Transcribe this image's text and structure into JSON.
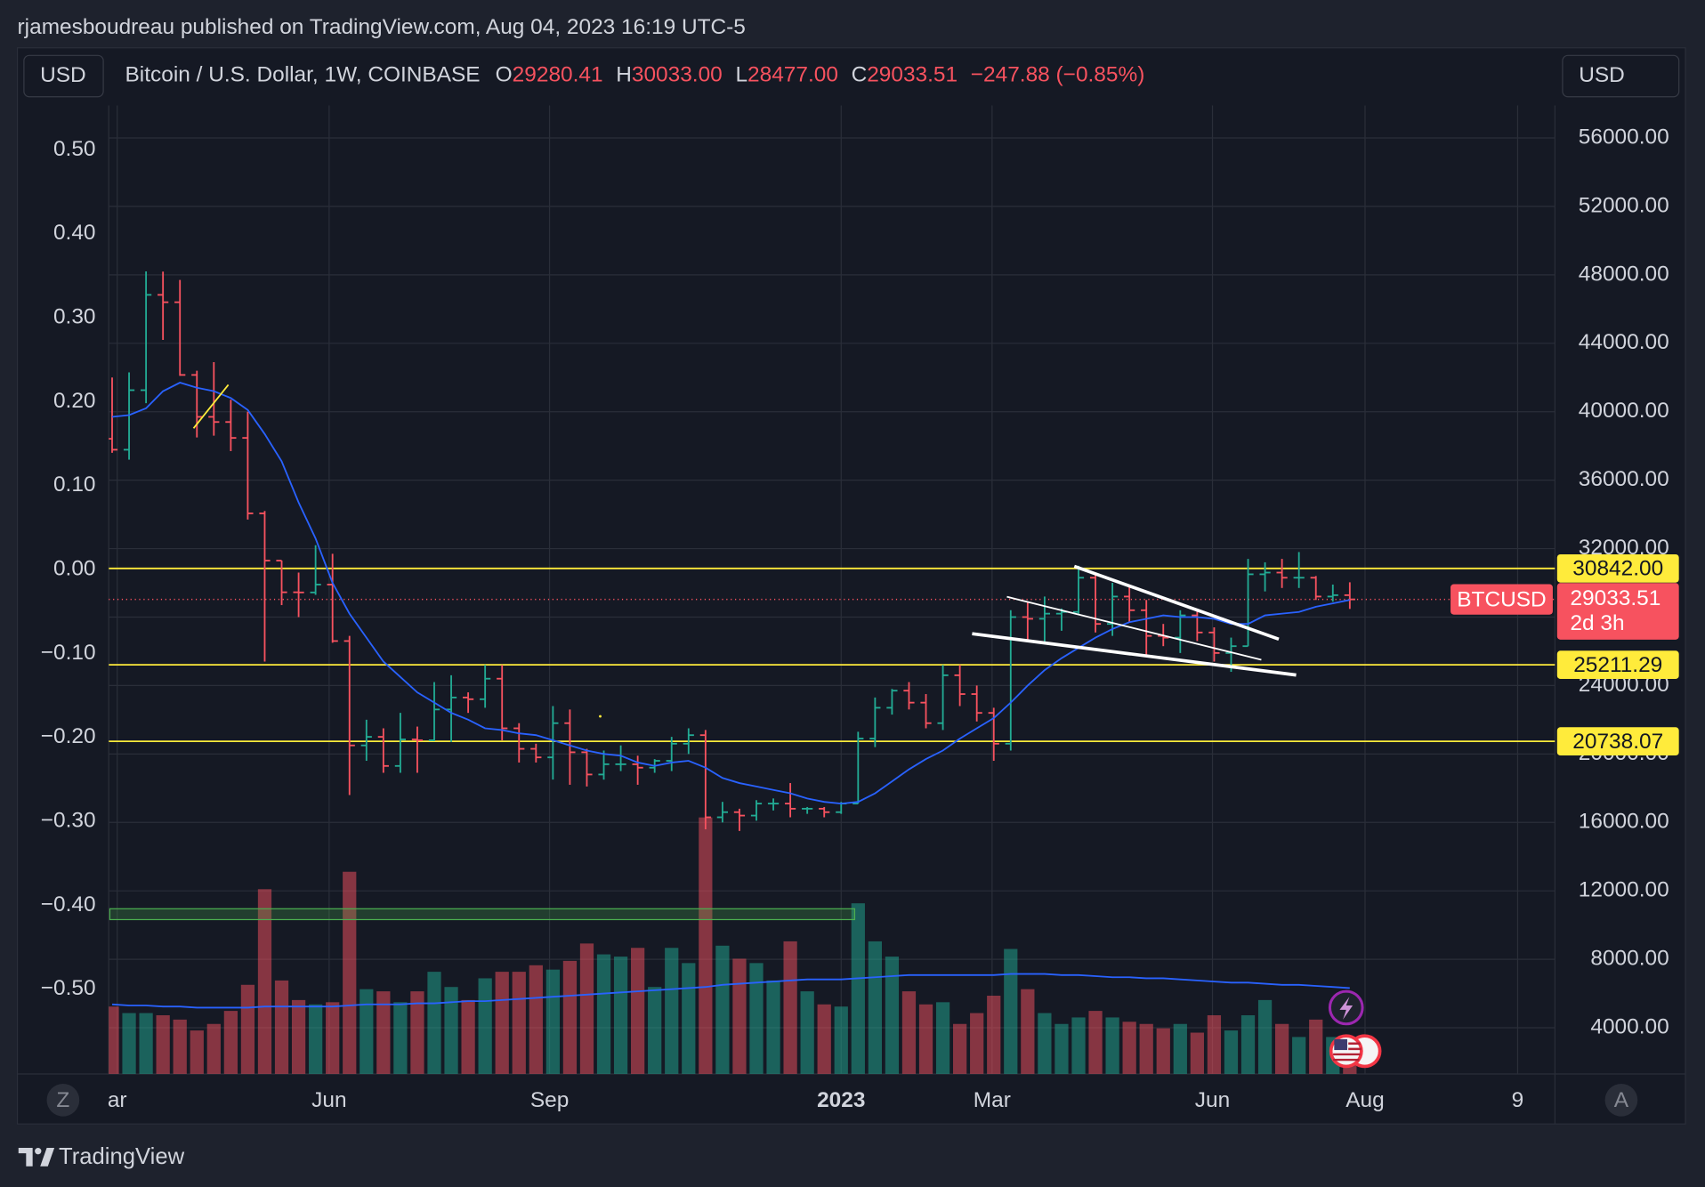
{
  "header": {
    "publisher": "rjamesboudreau published on TradingView.com, Aug 04, 2023 16:19 UTC-5",
    "currency_left": "USD",
    "currency_right": "USD",
    "symbol": "Bitcoin / U.S. Dollar, 1W, COINBASE",
    "legend": [
      {
        "key": "O",
        "value": "29280.41"
      },
      {
        "key": "H",
        "value": "30033.00"
      },
      {
        "key": "L",
        "value": "28477.00"
      },
      {
        "key": "C",
        "value": "29033.51"
      }
    ],
    "change": "−247.88 (−0.85%)"
  },
  "footer": {
    "brand": "TradingView",
    "left_button": "Z",
    "right_button": "A"
  },
  "chart_data": {
    "type": "ohlc",
    "open": [
      38420,
      37780,
      41260,
      46830,
      46400,
      42150,
      39700,
      39400,
      38470,
      34060,
      31300,
      29450,
      29440,
      29900,
      26600,
      20500,
      21000,
      19300,
      20850,
      20800,
      22600,
      23300,
      23200,
      24400,
      21500,
      20300,
      19800,
      21800,
      20100,
      18800,
      19400,
      19400,
      19200,
      19600,
      20600,
      21100,
      16300,
      16600,
      16400,
      17100,
      17100,
      16800,
      16800,
      16600,
      17100,
      20900,
      22700,
      23700,
      23000,
      21800,
      24600,
      23500,
      22400,
      20600,
      28000,
      27900,
      28200,
      28300,
      30300,
      27600,
      29200,
      28400,
      26900,
      26800,
      28100,
      27100,
      25900,
      26300,
      30500,
      30600,
      30300,
      30300,
      29200,
      29280.41
    ],
    "high": [
      42000,
      42300,
      48200,
      48190,
      47700,
      42400,
      42900,
      40700,
      40000,
      34200,
      31300,
      30600,
      32200,
      31700,
      26900,
      22000,
      21500,
      22400,
      21600,
      24200,
      24600,
      23600,
      25200,
      25200,
      21800,
      20600,
      22800,
      22600,
      20300,
      20200,
      20500,
      19900,
      19700,
      21000,
      21500,
      21400,
      17200,
      16800,
      17300,
      17400,
      18300,
      16900,
      16900,
      17200,
      21300,
      23300,
      23800,
      24200,
      23500,
      25200,
      25200,
      24000,
      22700,
      28400,
      28900,
      29200,
      28500,
      31000,
      30500,
      30000,
      29800,
      29000,
      27600,
      28400,
      28400,
      27400,
      26800,
      31400,
      31200,
      31400,
      31800,
      30400,
      29900,
      30033
    ],
    "low": [
      37600,
      37200,
      40500,
      44200,
      42100,
      38500,
      38600,
      37700,
      33700,
      25400,
      28700,
      28000,
      29300,
      26500,
      17600,
      19600,
      18900,
      18900,
      18900,
      20750,
      20700,
      22400,
      22700,
      20800,
      19500,
      19500,
      18500,
      18200,
      18100,
      18500,
      19000,
      18200,
      18900,
      19000,
      20000,
      15600,
      16000,
      15500,
      16100,
      16700,
      16300,
      16500,
      16300,
      16500,
      17100,
      20400,
      22300,
      22600,
      21500,
      21400,
      22800,
      21900,
      19600,
      20200,
      26600,
      26500,
      27200,
      28200,
      27100,
      26900,
      27700,
      25800,
      26300,
      25900,
      26600,
      25400,
      24800,
      26300,
      29500,
      29700,
      29700,
      29000,
      28900,
      28477
    ],
    "close": [
      37780,
      41260,
      46830,
      46400,
      42150,
      39700,
      39400,
      38470,
      34060,
      31300,
      29450,
      29440,
      29900,
      26600,
      20500,
      21000,
      19300,
      20850,
      20800,
      22600,
      23300,
      23200,
      24400,
      21500,
      20300,
      19800,
      21800,
      20100,
      18800,
      19400,
      19400,
      19200,
      19600,
      20600,
      21100,
      16300,
      16600,
      16400,
      17100,
      17100,
      16800,
      16800,
      16600,
      17100,
      20900,
      22700,
      23700,
      23000,
      21800,
      24600,
      23500,
      22400,
      20600,
      28000,
      27900,
      28200,
      28300,
      30300,
      27600,
      29200,
      28400,
      26900,
      26800,
      28100,
      27100,
      25900,
      26300,
      30500,
      30600,
      30300,
      30300,
      29200,
      29280,
      29033.51
    ],
    "volume": [
      62,
      56,
      56,
      54,
      50,
      40,
      46,
      58,
      82,
      170,
      86,
      68,
      64,
      66,
      186,
      78,
      76,
      66,
      76,
      94,
      80,
      68,
      88,
      94,
      94,
      100,
      96,
      104,
      120,
      110,
      108,
      116,
      80,
      116,
      102,
      236,
      118,
      106,
      102,
      86,
      122,
      76,
      64,
      62,
      157,
      122,
      108,
      76,
      64,
      66,
      46,
      56,
      72,
      115,
      78,
      56,
      46,
      52,
      58,
      52,
      48,
      46,
      42,
      46,
      38,
      54,
      40,
      54,
      68,
      46,
      34,
      50,
      34,
      22
    ],
    "volume_ma": [
      64,
      63,
      63,
      62,
      62,
      61,
      61,
      61,
      61,
      62,
      62,
      62,
      62,
      62,
      63,
      64,
      64,
      64,
      65,
      65,
      66,
      67,
      67,
      68,
      69,
      70,
      71,
      72,
      73,
      74,
      75,
      76,
      77,
      78,
      79,
      80,
      82,
      83,
      84,
      85,
      86,
      87,
      87,
      87,
      88,
      89,
      90,
      91,
      91,
      91,
      91,
      91,
      91,
      92,
      92,
      92,
      91,
      91,
      90,
      89,
      89,
      88,
      88,
      87,
      86,
      85,
      84,
      84,
      83,
      82,
      82,
      81,
      80,
      79
    ],
    "ma": [
      39700,
      39800,
      40200,
      41200,
      41700,
      41400,
      41200,
      40800,
      40100,
      38700,
      37100,
      34700,
      32600,
      30000,
      28200,
      26800,
      25400,
      24500,
      23600,
      23000,
      22400,
      22000,
      21500,
      21400,
      21200,
      21100,
      20800,
      20500,
      20200,
      20000,
      19900,
      19500,
      19300,
      19500,
      19600,
      19200,
      18600,
      18300,
      18100,
      17900,
      17700,
      17400,
      17200,
      17100,
      17200,
      17700,
      18400,
      19100,
      19700,
      20200,
      20900,
      21500,
      22100,
      23000,
      24000,
      24900,
      25600,
      26200,
      26800,
      27300,
      27700,
      27900,
      28100,
      28000,
      28000,
      27900,
      27600,
      27600,
      28100,
      28200,
      28300,
      28600,
      28800,
      29000
    ],
    "up_color": "#22ab94",
    "down_color": "#f7525f",
    "ma_color": "#2962ff",
    "level_color": "#ffeb3b",
    "xlim": [
      -0.2,
      85.1
    ],
    "xticks": [
      {
        "value": 0.3,
        "label": "ar"
      },
      {
        "value": 12.8,
        "label": "Jun"
      },
      {
        "value": 25.8,
        "label": "Sep"
      },
      {
        "value": 43,
        "label": "2023",
        "major": true
      },
      {
        "value": 51.9,
        "label": "Mar"
      },
      {
        "value": 64.9,
        "label": "Jun"
      },
      {
        "value": 73.9,
        "label": "Aug"
      },
      {
        "value": 82.9,
        "label": "9"
      }
    ],
    "ylim": [
      1300,
      57900
    ],
    "yticks": [
      {
        "value": 4000,
        "label": "4000.00"
      },
      {
        "value": 8000,
        "label": "8000.00"
      },
      {
        "value": 12000,
        "label": "12000.00"
      },
      {
        "value": 16000,
        "label": "16000.00"
      },
      {
        "value": 20000,
        "label": "20000.00"
      },
      {
        "value": 24000,
        "label": "24000.00"
      },
      {
        "value": 28000,
        "label": "28000.00"
      },
      {
        "value": 32000,
        "label": "32000.00"
      },
      {
        "value": 36000,
        "label": "36000.00"
      },
      {
        "value": 40000,
        "label": "40000.00"
      },
      {
        "value": 44000,
        "label": "44000.00"
      },
      {
        "value": 48000,
        "label": "48000.00"
      },
      {
        "value": 52000,
        "label": "52000.00"
      },
      {
        "value": 56000,
        "label": "56000.00"
      }
    ],
    "y2lim": [
      -0.601,
      0.553
    ],
    "y2ticks": [
      {
        "value": 0.5,
        "label": "0.50"
      },
      {
        "value": 0.4,
        "label": "0.40"
      },
      {
        "value": 0.3,
        "label": "0.30"
      },
      {
        "value": 0.2,
        "label": "0.20"
      },
      {
        "value": 0.1,
        "label": "0.10"
      },
      {
        "value": 0,
        "label": "0.00"
      },
      {
        "value": -0.1,
        "label": "−0.10"
      },
      {
        "value": -0.2,
        "label": "−0.20"
      },
      {
        "value": -0.3,
        "label": "−0.30"
      },
      {
        "value": -0.4,
        "label": "−0.40"
      },
      {
        "value": -0.5,
        "label": "−0.50"
      }
    ],
    "grid": true,
    "levels": [
      {
        "value": 30842,
        "label": "30842.00"
      },
      {
        "value": 25211.29,
        "label": "25211.29"
      },
      {
        "value": 20738.07,
        "label": "20738.07"
      }
    ],
    "last_price": {
      "name": "BTCUSD",
      "value": 29033.51,
      "label": "29033.51",
      "countdown": "2d 3h"
    }
  }
}
